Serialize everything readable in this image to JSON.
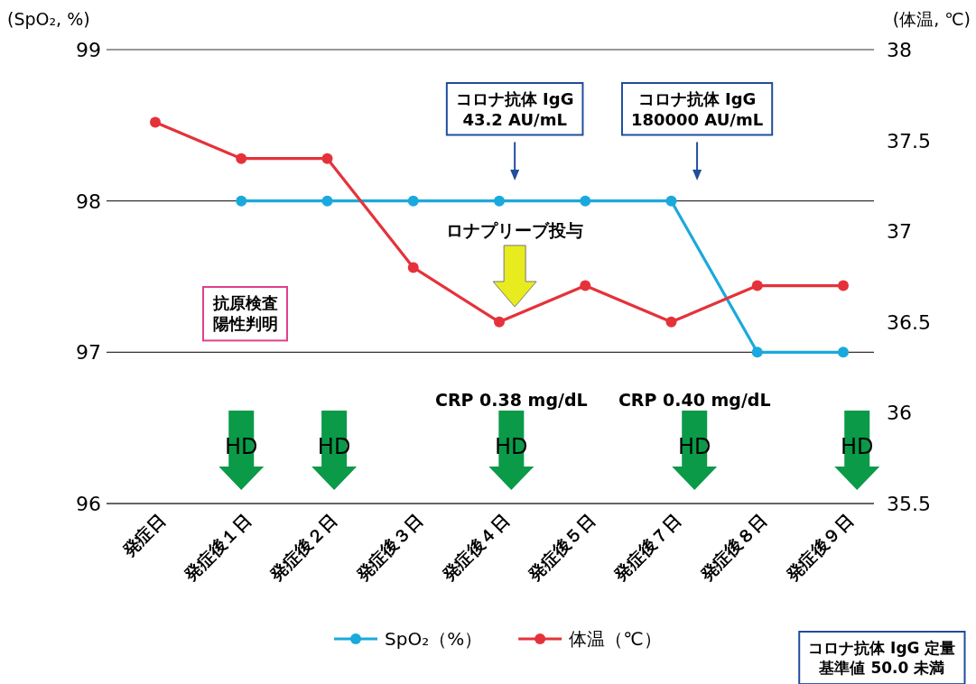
{
  "chart_data": {
    "type": "line",
    "ylabel": "(SpO₂, %)",
    "y2label": "(体温, ℃)",
    "categories": [
      "発症日",
      "発症後１日",
      "発症後２日",
      "発症後３日",
      "発症後４日",
      "発症後５日",
      "発症後７日",
      "発症後８日",
      "発症後９日"
    ],
    "series": [
      {
        "name": "SpO₂（%）",
        "color": "#1aa9dc",
        "values": [
          null,
          98,
          98,
          98,
          98,
          98,
          98,
          97,
          97
        ]
      },
      {
        "name": "体温（℃）",
        "color": "#e5323a",
        "axis": "y2",
        "values": [
          37.6,
          37.4,
          37.4,
          36.8,
          36.5,
          36.7,
          36.5,
          36.7,
          36.7
        ]
      }
    ],
    "ylim": [
      96,
      99
    ],
    "yticks": [
      96,
      97,
      98,
      99
    ],
    "y2lim": [
      35.5,
      38
    ],
    "y2ticks": [
      35.5,
      36,
      36.5,
      37,
      37.5,
      38
    ],
    "grid": "y",
    "legend": "bottom",
    "marker": "circle",
    "line_style": "solid",
    "annotations": [
      "コロナ抗体 IgG\n43.2 AU/mL",
      "コロナ抗体 IgG\n180000 AU/mL",
      "ロナプリーブ投与",
      "抗原検査",
      "陽性判明",
      "CRP 0.38 mg/dL",
      "CRP 0.40 mg/dL",
      "HD",
      "HD",
      "HD",
      "HD",
      "HD",
      "コロナ抗体 IgG 定量",
      "基準値 50.0 未満"
    ]
  }
}
